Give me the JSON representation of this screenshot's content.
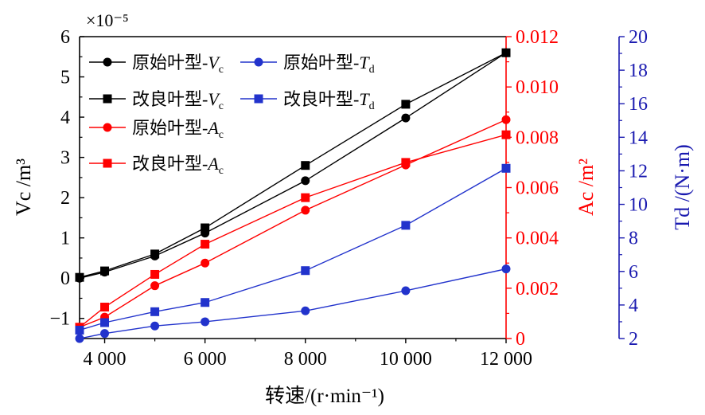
{
  "chart_data": {
    "type": "line",
    "xlabel": "转速/(r·min⁻¹)",
    "x_ticks": [
      "4 000",
      "6 000",
      "8 000",
      "10 000",
      "12 000"
    ],
    "xlim": [
      3500,
      12000
    ],
    "axes": {
      "left": {
        "label": "Vc /m³",
        "multiplier": "×10⁻⁵",
        "ylim": [
          -1.5,
          6
        ],
        "ticks": [
          "−1",
          "0",
          "1",
          "2",
          "3",
          "4",
          "5",
          "6"
        ],
        "color": "#000000"
      },
      "right1": {
        "label": "Ac /m²",
        "ylim": [
          0,
          0.012
        ],
        "ticks": [
          "0",
          "0.002",
          "0.004",
          "0.006",
          "0.008",
          "0.010",
          "0.012"
        ],
        "color": "#ff0000"
      },
      "right2": {
        "label": "Td /(N·m)",
        "ylim": [
          2,
          20
        ],
        "ticks": [
          "2",
          "4",
          "6",
          "8",
          "10",
          "12",
          "14",
          "16",
          "18",
          "20"
        ],
        "color": "#1a1ab0"
      }
    },
    "x": [
      3500,
      4000,
      5000,
      6000,
      8000,
      10000,
      12000
    ],
    "series": [
      {
        "name": "原始叶型-Vc",
        "axis": "left",
        "marker": "circle",
        "color": "#000000",
        "values": [
          0.0,
          0.15,
          0.55,
          1.12,
          2.42,
          3.98,
          5.6
        ]
      },
      {
        "name": "改良叶型-Vc",
        "axis": "left",
        "marker": "square",
        "color": "#000000",
        "values": [
          0.02,
          0.18,
          0.6,
          1.25,
          2.8,
          4.32,
          5.6
        ]
      },
      {
        "name": "原始叶型-Ac",
        "axis": "right1",
        "marker": "circle",
        "color": "#ff0000",
        "values": [
          0.00045,
          0.00085,
          0.0021,
          0.003,
          0.0051,
          0.0069,
          0.0087
        ]
      },
      {
        "name": "改良叶型-Ac",
        "axis": "right1",
        "marker": "square",
        "color": "#ff0000",
        "values": [
          0.00045,
          0.00125,
          0.00255,
          0.00375,
          0.0056,
          0.007,
          0.0081
        ]
      },
      {
        "name": "原始叶型-Td",
        "axis": "right2",
        "marker": "circle",
        "color": "#2233cc",
        "values": [
          2.0,
          2.3,
          2.75,
          3.0,
          3.65,
          4.85,
          6.15
        ]
      },
      {
        "name": "改良叶型-Td",
        "axis": "right2",
        "marker": "square",
        "color": "#2233cc",
        "values": [
          2.5,
          2.95,
          3.6,
          4.15,
          6.05,
          8.75,
          12.15
        ]
      }
    ],
    "legend": {
      "placement": "top-left",
      "entries": [
        {
          "prefix": "原始叶型-",
          "sym": "V",
          "sub": "c"
        },
        {
          "prefix": "原始叶型-",
          "sym": "T",
          "sub": "d"
        },
        {
          "prefix": "改良叶型-",
          "sym": "V",
          "sub": "c"
        },
        {
          "prefix": "改良叶型-",
          "sym": "T",
          "sub": "d"
        },
        {
          "prefix": "原始叶型-",
          "sym": "A",
          "sub": "c"
        },
        {
          "prefix": "改良叶型-",
          "sym": "A",
          "sub": "c"
        }
      ]
    },
    "grid": false
  }
}
